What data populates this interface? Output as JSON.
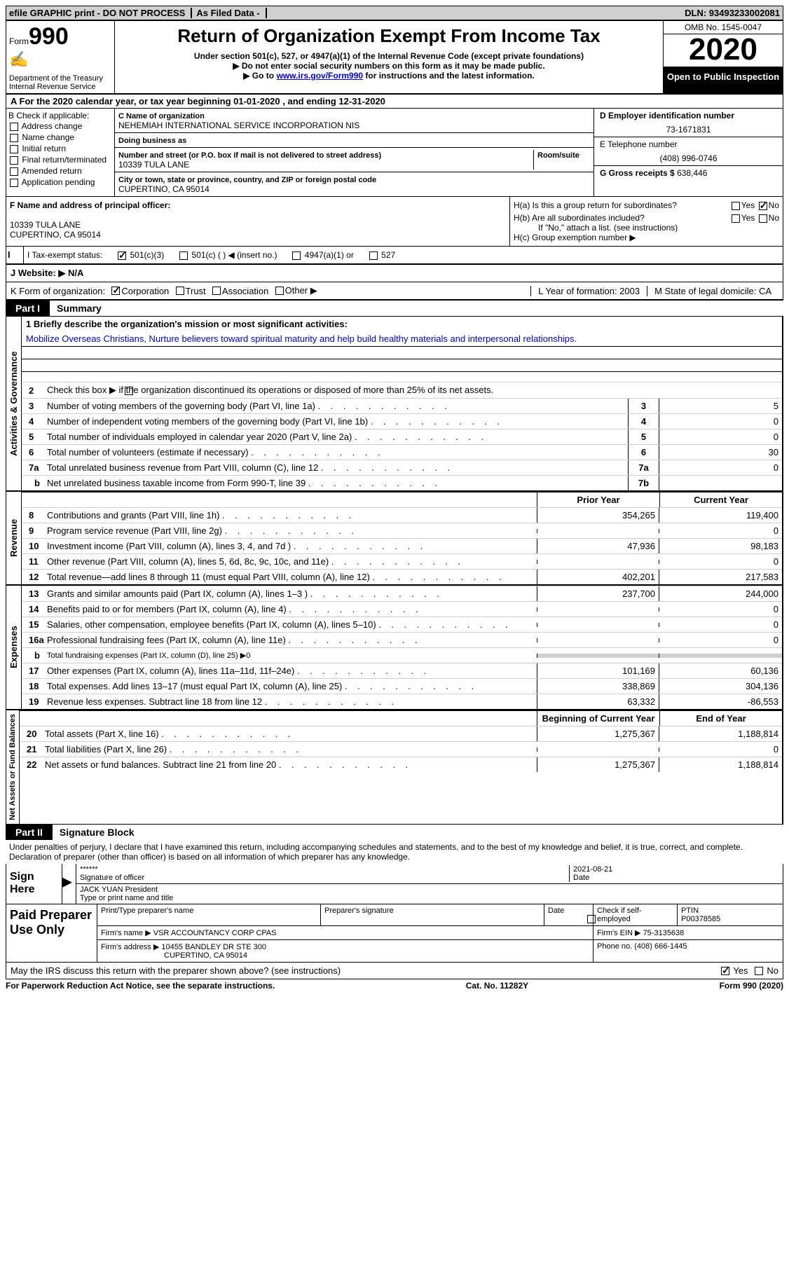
{
  "topbar": {
    "efile": "efile GRAPHIC print - DO NOT PROCESS",
    "asfiled": "As Filed Data -",
    "dln": "DLN: 93493233002081"
  },
  "header": {
    "form_label": "Form",
    "form_num": "990",
    "dept": "Department of the Treasury",
    "irs": "Internal Revenue Service",
    "title": "Return of Organization Exempt From Income Tax",
    "sub1": "Under section 501(c), 527, or 4947(a)(1) of the Internal Revenue Code (except private foundations)",
    "sub2": "▶ Do not enter social security numbers on this form as it may be made public.",
    "sub3_pre": "▶ Go to ",
    "sub3_link": "www.irs.gov/Form990",
    "sub3_post": " for instructions and the latest information.",
    "omb": "OMB No. 1545-0047",
    "year": "2020",
    "otp": "Open to Public Inspection"
  },
  "rowA": "A  For the 2020 calendar year, or tax year beginning 01-01-2020  , and ending 12-31-2020",
  "sectionB": {
    "label": "B Check if applicable:",
    "items": [
      "Address change",
      "Name change",
      "Initial return",
      "Final return/terminated",
      "Amended return",
      "Application pending"
    ]
  },
  "sectionC": {
    "name_label": "C Name of organization",
    "name": "NEHEMIAH INTERNATIONAL SERVICE INCORPORATION NIS",
    "dba_label": "Doing business as",
    "dba": "",
    "street_label": "Number and street (or P.O. box if mail is not delivered to street address)",
    "room_label": "Room/suite",
    "street": "10339 TULA LANE",
    "city_label": "City or town, state or province, country, and ZIP or foreign postal code",
    "city": "CUPERTINO, CA  95014"
  },
  "sectionD": {
    "label": "D Employer identification number",
    "ein": "73-1671831",
    "telephone_label": "E Telephone number",
    "telephone": "(408) 996-0746",
    "gross_label": "G Gross receipts $",
    "gross": "638,446"
  },
  "sectionF": {
    "label": "F  Name and address of principal officer:",
    "addr1": "10339 TULA LANE",
    "addr2": "CUPERTINO, CA  95014"
  },
  "sectionH": {
    "ha": "H(a)  Is this a group return for subordinates?",
    "hb": "H(b)  Are all subordinates included?",
    "hb_note": "If \"No,\" attach a list. (see instructions)",
    "hc": "H(c)  Group exemption number ▶"
  },
  "rowI": {
    "label": "I  Tax-exempt status:",
    "opts": [
      "501(c)(3)",
      "501(c) (  ) ◀ (insert no.)",
      "4947(a)(1) or",
      "527"
    ]
  },
  "rowJ": "J  Website: ▶  N/A",
  "rowK": {
    "label": "K Form of organization:",
    "opts": [
      "Corporation",
      "Trust",
      "Association",
      "Other ▶"
    ],
    "year": "L Year of formation: 2003",
    "state": "M State of legal domicile: CA"
  },
  "part1": {
    "label": "Part I",
    "title": "Summary",
    "l1_label": "1 Briefly describe the organization's mission or most significant activities:",
    "l1_text": "Mobilize Overseas Christians, Nurture believers toward spiritual maturity and help build healthy materials and interpersonal relationships.",
    "l2": "Check this box ▶     if the organization discontinued its operations or disposed of more than 25% of its net assets.",
    "governance": [
      {
        "n": "3",
        "d": "Number of voting members of the governing body (Part VI, line 1a)",
        "ln": "3",
        "v": "5"
      },
      {
        "n": "4",
        "d": "Number of independent voting members of the governing body (Part VI, line 1b)",
        "ln": "4",
        "v": "0"
      },
      {
        "n": "5",
        "d": "Total number of individuals employed in calendar year 2020 (Part V, line 2a)",
        "ln": "5",
        "v": "0"
      },
      {
        "n": "6",
        "d": "Total number of volunteers (estimate if necessary)",
        "ln": "6",
        "v": "30"
      },
      {
        "n": "7a",
        "d": "Total unrelated business revenue from Part VIII, column (C), line 12",
        "ln": "7a",
        "v": "0"
      },
      {
        "n": "b",
        "d": "Net unrelated business taxable income from Form 990-T, line 39",
        "ln": "7b",
        "v": "",
        "sub": true
      }
    ],
    "prior_label": "Prior Year",
    "curr_label": "Current Year",
    "revenue": [
      {
        "n": "8",
        "d": "Contributions and grants (Part VIII, line 1h)",
        "p": "354,265",
        "c": "119,400"
      },
      {
        "n": "9",
        "d": "Program service revenue (Part VIII, line 2g)",
        "p": "",
        "c": "0"
      },
      {
        "n": "10",
        "d": "Investment income (Part VIII, column (A), lines 3, 4, and 7d )",
        "p": "47,936",
        "c": "98,183"
      },
      {
        "n": "11",
        "d": "Other revenue (Part VIII, column (A), lines 5, 6d, 8c, 9c, 10c, and 11e)",
        "p": "",
        "c": "0"
      },
      {
        "n": "12",
        "d": "Total revenue—add lines 8 through 11 (must equal Part VIII, column (A), line 12)",
        "p": "402,201",
        "c": "217,583"
      }
    ],
    "expenses": [
      {
        "n": "13",
        "d": "Grants and similar amounts paid (Part IX, column (A), lines 1–3 )",
        "p": "237,700",
        "c": "244,000"
      },
      {
        "n": "14",
        "d": "Benefits paid to or for members (Part IX, column (A), line 4)",
        "p": "",
        "c": "0"
      },
      {
        "n": "15",
        "d": "Salaries, other compensation, employee benefits (Part IX, column (A), lines 5–10)",
        "p": "",
        "c": "0"
      },
      {
        "n": "16a",
        "d": "Professional fundraising fees (Part IX, column (A), line 11e)",
        "p": "",
        "c": "0"
      },
      {
        "n": "b",
        "d": "Total fundraising expenses (Part IX, column (D), line 25) ▶0",
        "p": null,
        "c": null,
        "sub": true,
        "gray": true
      },
      {
        "n": "17",
        "d": "Other expenses (Part IX, column (A), lines 11a–11d, 11f–24e)",
        "p": "101,169",
        "c": "60,136"
      },
      {
        "n": "18",
        "d": "Total expenses. Add lines 13–17 (must equal Part IX, column (A), line 25)",
        "p": "338,869",
        "c": "304,136"
      },
      {
        "n": "19",
        "d": "Revenue less expenses. Subtract line 18 from line 12",
        "p": "63,332",
        "c": "-86,553"
      }
    ],
    "beg_label": "Beginning of Current Year",
    "end_label": "End of Year",
    "netassets": [
      {
        "n": "20",
        "d": "Total assets (Part X, line 16)",
        "p": "1,275,367",
        "c": "1,188,814"
      },
      {
        "n": "21",
        "d": "Total liabilities (Part X, line 26)",
        "p": "",
        "c": "0"
      },
      {
        "n": "22",
        "d": "Net assets or fund balances. Subtract line 21 from line 20",
        "p": "1,275,367",
        "c": "1,188,814"
      }
    ]
  },
  "part2": {
    "label": "Part II",
    "title": "Signature Block",
    "decl": "Under penalties of perjury, I declare that I have examined this return, including accompanying schedules and statements, and to the best of my knowledge and belief, it is true, correct, and complete. Declaration of preparer (other than officer) is based on all information of which preparer has any knowledge."
  },
  "sign": {
    "label": "Sign Here",
    "stars": "******",
    "sig_label": "Signature of officer",
    "date": "2021-08-21",
    "date_label": "Date",
    "name": "JACK YUAN President",
    "name_label": "Type or print name and title"
  },
  "preparer": {
    "label": "Paid Preparer Use Only",
    "print_label": "Print/Type preparer's name",
    "sig_label": "Preparer's signature",
    "date_label": "Date",
    "check_label": "Check        if self-employed",
    "ptin_label": "PTIN",
    "ptin": "P00378585",
    "firm_label": "Firm's name   ▶",
    "firm": "VSR ACCOUNTANCY CORP CPAS",
    "ein_label": "Firm's EIN ▶",
    "ein": "75-3135638",
    "addr_label": "Firm's address ▶",
    "addr1": "10455 BANDLEY DR STE 300",
    "addr2": "CUPERTINO, CA  95014",
    "phone_label": "Phone no.",
    "phone": "(408) 666-1445",
    "discuss": "May the IRS discuss this return with the preparer shown above? (see instructions)"
  },
  "footer": {
    "left": "For Paperwork Reduction Act Notice, see the separate instructions.",
    "mid": "Cat. No. 11282Y",
    "right": "Form 990 (2020)"
  },
  "side_labels": {
    "gov": "Activities & Governance",
    "rev": "Revenue",
    "exp": "Expenses",
    "net": "Net Assets or Fund Balances"
  }
}
